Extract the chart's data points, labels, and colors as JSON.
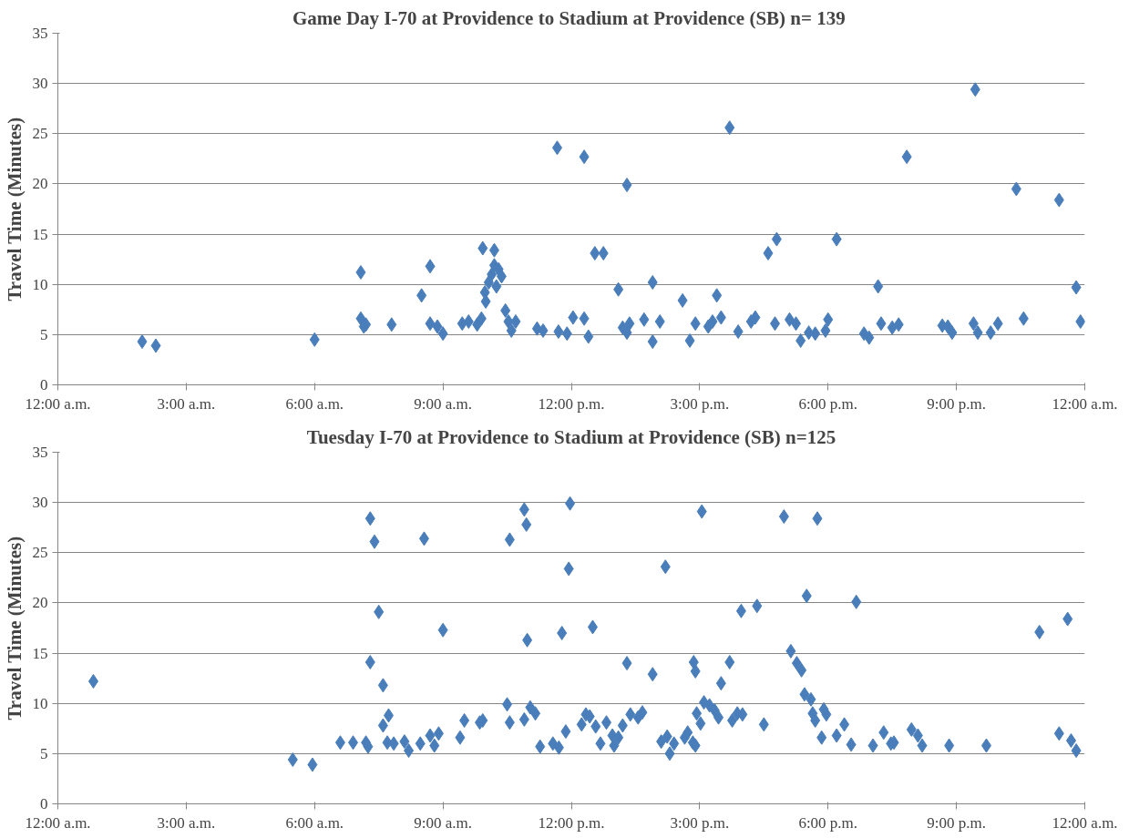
{
  "chart_data": [
    {
      "type": "scatter",
      "title": "Game Day I-70 at Providence to Stadium at Providence (SB)  n= 139",
      "ylabel": "Travel Time (Minutes)",
      "xlim": [
        0,
        24
      ],
      "xticks": [
        {
          "value": 0,
          "label": "12:00 a.m."
        },
        {
          "value": 3,
          "label": "3:00 a.m."
        },
        {
          "value": 6,
          "label": "6:00 a.m."
        },
        {
          "value": 9,
          "label": "9:00 a.m."
        },
        {
          "value": 12,
          "label": "12:00 p.m."
        },
        {
          "value": 15,
          "label": "3:00 p.m."
        },
        {
          "value": 18,
          "label": "6:00 p.m."
        },
        {
          "value": 21,
          "label": "9:00 p.m."
        },
        {
          "value": 24,
          "label": "12:00 a.m."
        }
      ],
      "ylim": [
        0,
        35
      ],
      "yticks": [
        0,
        5,
        10,
        15,
        20,
        25,
        30,
        35
      ],
      "grid": "y",
      "marker": "diamond",
      "series": [
        {
          "color": "#4a7ebb",
          "x": [
            1.97,
            2.29,
            6.0,
            7.08,
            7.08,
            7.15,
            7.2,
            7.8,
            8.5,
            8.7,
            8.7,
            8.87,
            9.0,
            9.45,
            9.6,
            9.8,
            9.9,
            9.93,
            9.98,
            10.0,
            10.07,
            10.14,
            10.2,
            10.2,
            10.25,
            10.3,
            10.37,
            10.46,
            10.53,
            10.6,
            10.7,
            11.2,
            11.34,
            11.67,
            11.7,
            11.9,
            12.04,
            12.3,
            12.3,
            12.4,
            12.55,
            12.75,
            13.1,
            13.2,
            13.3,
            13.3,
            13.36,
            13.7,
            13.9,
            13.9,
            14.07,
            14.6,
            14.77,
            14.9,
            15.2,
            15.3,
            15.4,
            15.5,
            15.7,
            15.9,
            16.2,
            16.3,
            16.6,
            16.8,
            16.76,
            17.1,
            17.25,
            17.36,
            17.55,
            17.7,
            17.94,
            18.0,
            18.2,
            18.84,
            18.96,
            19.17,
            19.24,
            19.5,
            19.65,
            19.84,
            20.67,
            20.8,
            20.9,
            21.4,
            21.44,
            21.5,
            21.8,
            21.97,
            22.4,
            22.57,
            23.4,
            23.8,
            23.9
          ],
          "values": [
            4.3,
            3.9,
            4.5,
            11.2,
            6.6,
            5.8,
            6.0,
            6.0,
            8.9,
            11.8,
            6.1,
            5.8,
            5.1,
            6.1,
            6.3,
            6.0,
            6.6,
            13.6,
            9.2,
            8.3,
            10.2,
            11.0,
            13.4,
            11.9,
            9.8,
            11.5,
            10.8,
            7.4,
            6.3,
            5.4,
            6.3,
            5.6,
            5.4,
            23.6,
            5.3,
            5.1,
            6.7,
            6.6,
            22.7,
            4.8,
            13.1,
            13.1,
            9.5,
            5.7,
            5.2,
            19.9,
            6.1,
            6.5,
            10.2,
            4.3,
            6.3,
            8.4,
            4.4,
            6.1,
            5.8,
            6.3,
            8.9,
            6.7,
            25.6,
            5.3,
            6.3,
            6.7,
            13.1,
            14.5,
            6.1,
            6.5,
            6.1,
            4.4,
            5.2,
            5.1,
            5.4,
            6.5,
            14.5,
            5.1,
            4.7,
            9.8,
            6.1,
            5.7,
            6.0,
            22.7,
            5.9,
            5.8,
            5.2,
            6.1,
            29.4,
            5.2,
            5.2,
            6.1,
            19.5,
            6.6,
            18.4,
            9.7,
            6.3
          ]
        }
      ]
    },
    {
      "type": "scatter",
      "title": "Tuesday I-70 at Providence to Stadium at Providence (SB) n=125",
      "ylabel": "Travel Time (Minutes)",
      "xlim": [
        0,
        24
      ],
      "xticks": [
        {
          "value": 0,
          "label": "12:00 a.m."
        },
        {
          "value": 3,
          "label": "3:00 a.m."
        },
        {
          "value": 6,
          "label": "6:00 a.m."
        },
        {
          "value": 9,
          "label": "9:00 a.m."
        },
        {
          "value": 12,
          "label": "12:00 p.m."
        },
        {
          "value": 15,
          "label": "3:00 p.m."
        },
        {
          "value": 18,
          "label": "6:00 p.m."
        },
        {
          "value": 21,
          "label": "9:00 p.m."
        },
        {
          "value": 24,
          "label": "12:00 a.m."
        }
      ],
      "ylim": [
        0,
        35
      ],
      "yticks": [
        0,
        5,
        10,
        15,
        20,
        25,
        30,
        35
      ],
      "grid": "y",
      "marker": "diamond",
      "series": [
        {
          "color": "#4a7ebb",
          "x": [
            0.83,
            5.49,
            5.95,
            6.6,
            6.9,
            7.2,
            7.25,
            7.3,
            7.3,
            7.4,
            7.5,
            7.6,
            7.6,
            7.7,
            7.73,
            7.85,
            8.1,
            8.2,
            8.47,
            8.56,
            8.7,
            8.8,
            8.9,
            9.0,
            9.4,
            9.5,
            9.86,
            9.93,
            10.5,
            10.56,
            10.56,
            10.9,
            10.9,
            10.95,
            10.97,
            11.04,
            11.16,
            11.27,
            11.57,
            11.71,
            11.78,
            11.87,
            11.94,
            11.97,
            12.24,
            12.34,
            12.43,
            12.5,
            12.57,
            12.68,
            12.82,
            12.96,
            13.0,
            13.1,
            13.2,
            13.3,
            13.38,
            13.56,
            13.66,
            13.9,
            14.1,
            14.2,
            14.24,
            14.3,
            14.4,
            14.65,
            14.72,
            14.84,
            14.86,
            14.9,
            14.9,
            14.93,
            15.02,
            15.05,
            15.1,
            15.23,
            15.35,
            15.44,
            15.5,
            15.7,
            15.76,
            15.88,
            15.97,
            16.0,
            16.34,
            16.5,
            16.97,
            17.13,
            17.27,
            17.38,
            17.45,
            17.5,
            17.6,
            17.64,
            17.7,
            17.75,
            17.85,
            17.9,
            17.96,
            18.2,
            18.38,
            18.54,
            18.66,
            19.05,
            19.3,
            19.47,
            19.54,
            19.95,
            20.1,
            20.2,
            20.83,
            21.7,
            22.94,
            23.4,
            23.6,
            23.68,
            23.8
          ],
          "values": [
            12.2,
            4.4,
            3.9,
            6.1,
            6.1,
            6.1,
            5.7,
            14.1,
            28.4,
            26.1,
            19.1,
            11.8,
            7.8,
            6.1,
            8.8,
            6.0,
            6.2,
            5.3,
            6.0,
            26.4,
            6.8,
            5.8,
            7.0,
            17.3,
            6.6,
            8.3,
            8.1,
            8.3,
            9.9,
            26.3,
            8.1,
            8.4,
            29.3,
            27.8,
            16.3,
            9.6,
            9.0,
            5.7,
            6.0,
            5.6,
            17.0,
            7.2,
            23.4,
            29.9,
            7.9,
            8.9,
            8.7,
            17.6,
            7.7,
            6.0,
            8.1,
            6.8,
            5.8,
            6.6,
            7.8,
            14.0,
            8.9,
            8.6,
            9.1,
            12.9,
            6.2,
            23.6,
            6.7,
            5.0,
            6.0,
            6.6,
            7.1,
            6.1,
            14.1,
            13.2,
            5.8,
            9.0,
            8.0,
            29.1,
            10.1,
            9.8,
            9.3,
            8.6,
            12.0,
            14.1,
            8.3,
            9.0,
            19.2,
            8.9,
            19.7,
            7.9,
            28.6,
            15.2,
            14.0,
            13.3,
            10.9,
            20.7,
            10.4,
            9.0,
            8.3,
            28.4,
            6.6,
            9.4,
            8.9,
            6.8,
            7.9,
            5.9,
            20.1,
            5.8,
            7.1,
            6.0,
            6.1,
            7.4,
            6.8,
            5.8,
            5.8,
            5.8,
            17.1,
            7.0,
            18.4,
            6.3,
            5.3
          ]
        }
      ]
    }
  ]
}
